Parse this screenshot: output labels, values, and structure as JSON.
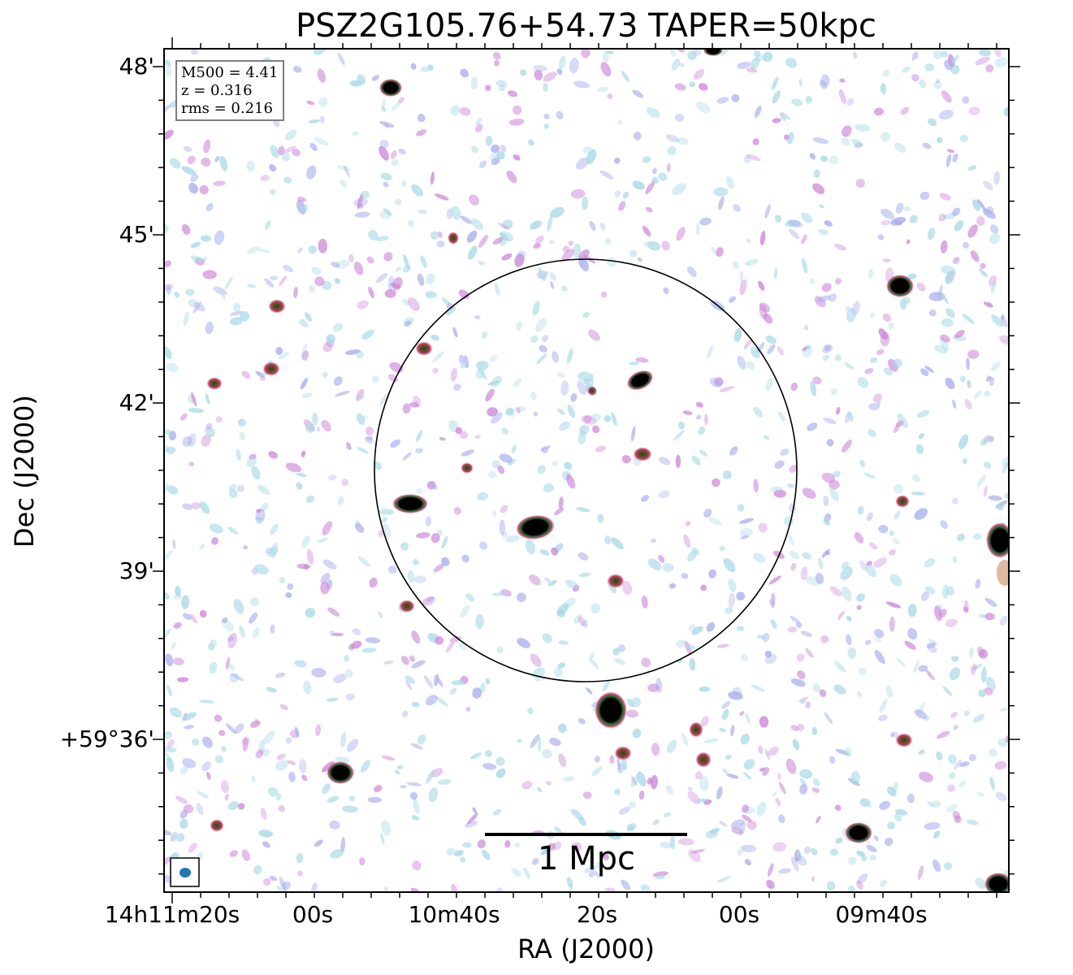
{
  "title": "PSZ2G105.76+54.73 TAPER=50kpc",
  "info": {
    "m500": "M500 = 4.41",
    "z": "z = 0.316",
    "rms": "rms = 0.216"
  },
  "axes": {
    "xlabel": "RA (J2000)",
    "ylabel": "Dec (J2000)",
    "ra_ticks": [
      "14h11m20s",
      "00s",
      "10m40s",
      "20s",
      "00s",
      "09m40s"
    ],
    "dec_ticks": [
      "48'",
      "45'",
      "42'",
      "39'",
      "+59°36'"
    ]
  },
  "scalebar": {
    "label": "1 Mpc"
  },
  "colors": {
    "frame": "#000000",
    "noise_cyan": "#a9d9e6",
    "noise_blue": "#a8aeec",
    "noise_magenta": "#cc88d8",
    "source_core": "#000000",
    "beam": "#1f77b4"
  }
}
